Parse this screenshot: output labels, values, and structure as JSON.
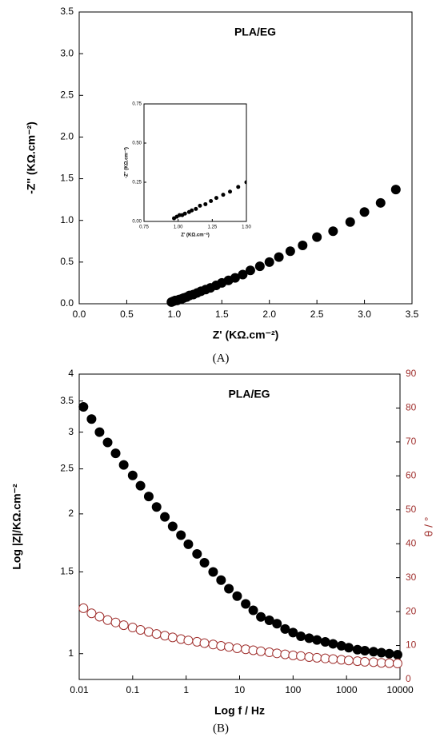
{
  "chart_data": [
    {
      "type": "scatter",
      "title": "PLA/EG",
      "caption": "(A)",
      "xlabel": "Z' (KΩ.cm⁻²)",
      "ylabel": "-Z'' (KΩ.cm⁻²)",
      "color": "#000000",
      "x": [
        0.97,
        0.99,
        1.01,
        1.03,
        1.05,
        1.08,
        1.1,
        1.13,
        1.16,
        1.2,
        1.24,
        1.28,
        1.33,
        1.38,
        1.44,
        1.5,
        1.57,
        1.64,
        1.72,
        1.8,
        1.9,
        2.0,
        2.1,
        2.22,
        2.35,
        2.5,
        2.67,
        2.85,
        3.0,
        3.17,
        3.33
      ],
      "values": [
        0.02,
        0.03,
        0.04,
        0.04,
        0.05,
        0.06,
        0.07,
        0.08,
        0.1,
        0.11,
        0.13,
        0.15,
        0.17,
        0.19,
        0.22,
        0.25,
        0.28,
        0.31,
        0.35,
        0.4,
        0.45,
        0.5,
        0.56,
        0.63,
        0.7,
        0.8,
        0.87,
        0.98,
        1.1,
        1.21,
        1.37
      ],
      "xlim": [
        0,
        3.5
      ],
      "ylim": [
        0,
        3.5
      ],
      "xticks": [
        {
          "value": 0,
          "label": "0.0"
        },
        0.5,
        {
          "value": 1,
          "label": "1.0"
        },
        1.5,
        {
          "value": 2,
          "label": "2.0"
        },
        2.5,
        {
          "value": 3,
          "label": "3.0"
        },
        3.5
      ],
      "yticks": [
        {
          "value": 0,
          "label": "0.0"
        },
        0.5,
        {
          "value": 1,
          "label": "1.0"
        },
        1.5,
        {
          "value": 2,
          "label": "2.0"
        },
        2.5,
        {
          "value": 3,
          "label": "3.0"
        },
        3.5
      ],
      "inset": {
        "xlabel": "Z' (KΩ.cm⁻²)",
        "ylabel": "-Z'' (KΩ.cm⁻²)",
        "xlim": [
          0.75,
          1.5
        ],
        "ylim": [
          0,
          0.75
        ],
        "xticks": [
          {
            "value": 0.75,
            "label": "0.75"
          },
          {
            "value": 1,
            "label": "1.00"
          },
          {
            "value": 1.25,
            "label": "1.25"
          },
          {
            "value": 1.5,
            "label": "1.50"
          }
        ],
        "yticks": [
          {
            "value": 0,
            "label": "0.00"
          },
          {
            "value": 0.25,
            "label": "0.25"
          },
          {
            "value": 0.5,
            "label": "0.50"
          },
          {
            "value": 0.75,
            "label": "0.75"
          }
        ]
      }
    },
    {
      "type": "scatter",
      "title": "PLA/EG",
      "caption": "(B)",
      "xlabel": "Log f / Hz",
      "ylabel": "Log |Z|/KΩ.cm⁻²",
      "y2label": "θ / °",
      "xlog": true,
      "ylog": true,
      "x": [
        0.012,
        0.017,
        0.024,
        0.034,
        0.048,
        0.068,
        0.1,
        0.14,
        0.2,
        0.28,
        0.4,
        0.56,
        0.8,
        1.1,
        1.6,
        2.2,
        3.2,
        4.5,
        6.3,
        9,
        13,
        18,
        25,
        36,
        50,
        71,
        100,
        140,
        200,
        280,
        400,
        560,
        800,
        1100,
        1600,
        2200,
        3200,
        4500,
        6300,
        9000
      ],
      "series": [
        {
          "color": "#000000",
          "marker": "filled",
          "values": [
            3.4,
            3.2,
            3.0,
            2.85,
            2.7,
            2.55,
            2.42,
            2.3,
            2.18,
            2.07,
            1.97,
            1.88,
            1.8,
            1.72,
            1.64,
            1.57,
            1.5,
            1.44,
            1.38,
            1.33,
            1.28,
            1.24,
            1.2,
            1.18,
            1.16,
            1.13,
            1.11,
            1.09,
            1.08,
            1.07,
            1.06,
            1.05,
            1.04,
            1.03,
            1.02,
            1.015,
            1.01,
            1.005,
            1.0,
            0.995
          ]
        },
        {
          "color": "#a0302e",
          "marker": "open",
          "axis": "y2",
          "values": [
            21,
            19.5,
            18.5,
            17.5,
            16.8,
            16,
            15.3,
            14.6,
            14,
            13.4,
            12.9,
            12.4,
            11.9,
            11.5,
            11.1,
            10.7,
            10.3,
            9.9,
            9.6,
            9.2,
            8.9,
            8.6,
            8.3,
            8.0,
            7.7,
            7.4,
            7.1,
            6.9,
            6.6,
            6.4,
            6.2,
            6.0,
            5.8,
            5.6,
            5.4,
            5.2,
            5.1,
            4.9,
            4.8,
            4.7
          ]
        }
      ],
      "xlim": [
        0.01,
        10000
      ],
      "ylim": [
        0.88,
        4
      ],
      "y2lim": [
        0,
        90
      ],
      "xticks": [
        0.01,
        0.1,
        1,
        10,
        100,
        1000,
        10000
      ],
      "yticks": [
        1,
        1.5,
        2,
        2.5,
        3,
        3.5,
        4
      ],
      "y2ticks": [
        0,
        10,
        20,
        30,
        40,
        50,
        60,
        70,
        80,
        90
      ]
    }
  ]
}
